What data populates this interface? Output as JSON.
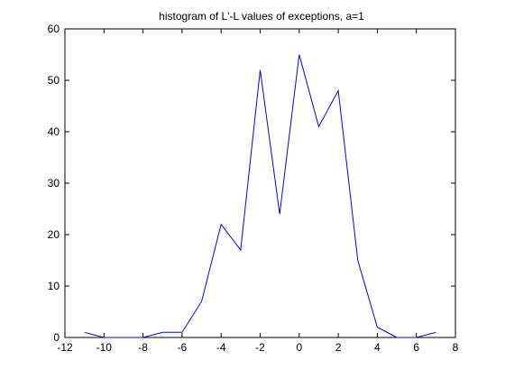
{
  "chart_data": {
    "type": "line",
    "title": "histogram of L'-L values of exceptions, a=1",
    "xlabel": "",
    "ylabel": "",
    "xlim": [
      -12,
      8
    ],
    "ylim": [
      0,
      60
    ],
    "x_ticks": [
      -12,
      -10,
      -8,
      -6,
      -4,
      -2,
      0,
      2,
      4,
      6,
      8
    ],
    "y_ticks": [
      0,
      10,
      20,
      30,
      40,
      50,
      60
    ],
    "grid": false,
    "series": [
      {
        "color": "#0000ff",
        "points": [
          [
            -11,
            1
          ],
          [
            -10,
            0
          ],
          [
            -9,
            0
          ],
          [
            -8,
            0
          ],
          [
            -7,
            1
          ],
          [
            -6,
            1
          ],
          [
            -5,
            7
          ],
          [
            -4,
            22
          ],
          [
            -3,
            17
          ],
          [
            -2,
            52
          ],
          [
            -1,
            24
          ],
          [
            0,
            55
          ],
          [
            1,
            41
          ],
          [
            2,
            48
          ],
          [
            3,
            15
          ],
          [
            4,
            2
          ],
          [
            5,
            0
          ],
          [
            6,
            0
          ],
          [
            7,
            1
          ]
        ]
      }
    ]
  }
}
